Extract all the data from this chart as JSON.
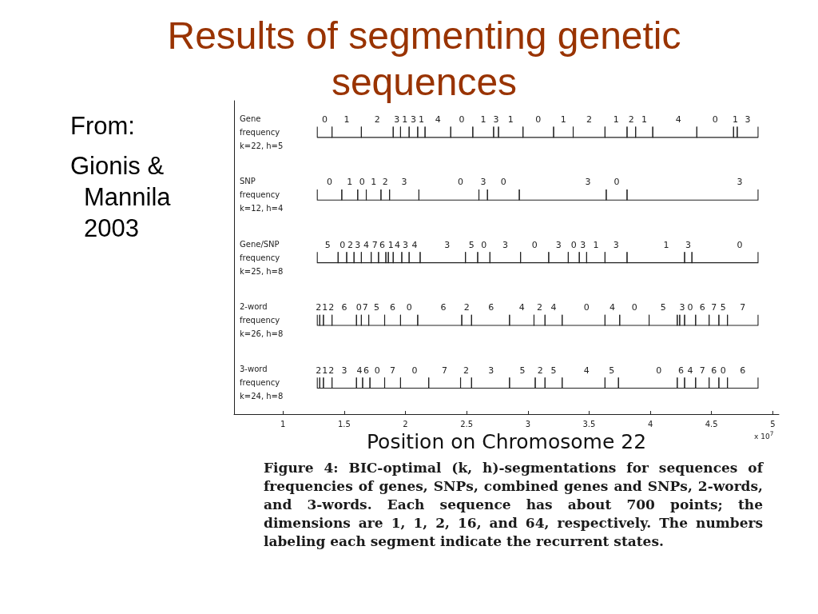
{
  "chart_data": {
    "type": "bar",
    "orientation": "horizontal",
    "title": "Results of segmenting genetic sequences",
    "xlabel": "Position on Chromosome 22",
    "categories": [
      "Gene\nfrequency\nk=22, h=5",
      "SNP\nfrequency\nk=12, h=4",
      "Gene/SNP\nfrequency\nk=25, h=8",
      "2-word\nfrequency\nk=26, h=8",
      "3-word\nfrequency\nk=24, h=8"
    ],
    "xlim": [
      0.6,
      5.05
    ],
    "xticks": [
      1,
      1.5,
      2,
      2.5,
      3,
      3.5,
      4,
      4.5,
      5
    ],
    "annotations": [
      "From:",
      "Gionis & Mannila 2003",
      "x 10$^{7}$",
      "Figure 4: BIC-optimal (k, h)-segmentations for sequences of frequencies of genes, SNPs, combined genes and SNPs, 2-words, and 3-words. Each sequence has about 700 points; the dimensions are 1, 1, 2, 16, and 64, respectively. The numbers labeling each segment indicate the recurrent states.",
      {
        "text": "0",
        "x": 1.4,
        "y": "Gene\nfrequency\nk=22, h=5"
      },
      {
        "text": "1",
        "x": 1.64,
        "y": "Gene\nfrequency\nk=22, h=5"
      },
      {
        "text": "2",
        "x": 1.9,
        "y": "Gene\nfrequency\nk=22, h=5"
      },
      {
        "text": "3",
        "x": 1.96,
        "y": "Gene\nfrequency\nk=22, h=5"
      },
      {
        "text": "1",
        "x": 2.03,
        "y": "Gene\nfrequency\nk=22, h=5"
      },
      {
        "text": "3",
        "x": 2.1,
        "y": "Gene\nfrequency\nk=22, h=5"
      },
      {
        "text": "1",
        "x": 2.16,
        "y": "Gene\nfrequency\nk=22, h=5"
      },
      {
        "text": "4",
        "x": 2.37,
        "y": "Gene\nfrequency\nk=22, h=5"
      },
      {
        "text": "0",
        "x": 2.55,
        "y": "Gene\nfrequency\nk=22, h=5"
      },
      {
        "text": "1",
        "x": 2.72,
        "y": "Gene\nfrequency\nk=22, h=5"
      },
      {
        "text": "3",
        "x": 2.76,
        "y": "Gene\nfrequency\nk=22, h=5"
      },
      {
        "text": "1",
        "x": 2.96,
        "y": "Gene\nfrequency\nk=22, h=5"
      },
      {
        "text": "0",
        "x": 3.21,
        "y": "Gene\nfrequency\nk=22, h=5"
      },
      {
        "text": "1",
        "x": 3.37,
        "y": "Gene\nfrequency\nk=22, h=5"
      },
      {
        "text": "2",
        "x": 3.63,
        "y": "Gene\nfrequency\nk=22, h=5"
      },
      {
        "text": "1",
        "x": 3.81,
        "y": "Gene\nfrequency\nk=22, h=5"
      },
      {
        "text": "2",
        "x": 3.88,
        "y": "Gene\nfrequency\nk=22, h=5"
      },
      {
        "text": "1",
        "x": 4.02,
        "y": "Gene\nfrequency\nk=22, h=5"
      },
      {
        "text": "4",
        "x": 4.38,
        "y": "Gene\nfrequency\nk=22, h=5"
      },
      {
        "text": "0",
        "x": 4.68,
        "y": "Gene\nfrequency\nk=22, h=5"
      },
      {
        "text": "1",
        "x": 4.71,
        "y": "Gene\nfrequency\nk=22, h=5"
      },
      {
        "text": "3",
        "x": 4.88,
        "y": "Gene\nfrequency\nk=22, h=5"
      },
      {
        "text": "0",
        "x": 1.48,
        "y": "SNP\nfrequency\nk=12, h=4"
      },
      {
        "text": "1",
        "x": 1.61,
        "y": "SNP\nfrequency\nk=12, h=4"
      },
      {
        "text": "0",
        "x": 1.68,
        "y": "SNP\nfrequency\nk=12, h=4"
      },
      {
        "text": "1",
        "x": 1.8,
        "y": "SNP\nfrequency\nk=12, h=4"
      },
      {
        "text": "2",
        "x": 1.87,
        "y": "SNP\nfrequency\nk=12, h=4"
      },
      {
        "text": "3",
        "x": 2.11,
        "y": "SNP\nfrequency\nk=12, h=4"
      },
      {
        "text": "0",
        "x": 2.6,
        "y": "SNP\nfrequency\nk=12, h=4"
      },
      {
        "text": "3",
        "x": 2.67,
        "y": "SNP\nfrequency\nk=12, h=4"
      },
      {
        "text": "0",
        "x": 2.93,
        "y": "SNP\nfrequency\nk=12, h=4"
      },
      {
        "text": "3",
        "x": 3.64,
        "y": "SNP\nfrequency\nk=12, h=4"
      },
      {
        "text": "0",
        "x": 3.81,
        "y": "SNP\nfrequency\nk=12, h=4"
      },
      {
        "text": "3",
        "x": 4.88,
        "y": "SNP\nfrequency\nk=12, h=4"
      },
      {
        "text": "5",
        "x": 1.45,
        "y": "Gene/SNP\nfrequency\nk=25, h=8"
      },
      {
        "text": "0",
        "x": 1.52,
        "y": "Gene/SNP\nfrequency\nk=25, h=8"
      },
      {
        "text": "2",
        "x": 1.58,
        "y": "Gene/SNP\nfrequency\nk=25, h=8"
      },
      {
        "text": "3",
        "x": 1.64,
        "y": "Gene/SNP\nfrequency\nk=25, h=8"
      },
      {
        "text": "4",
        "x": 1.72,
        "y": "Gene/SNP\nfrequency\nk=25, h=8"
      },
      {
        "text": "7",
        "x": 1.78,
        "y": "Gene/SNP\nfrequency\nk=25, h=8"
      },
      {
        "text": "6",
        "x": 1.84,
        "y": "Gene/SNP\nfrequency\nk=25, h=8"
      },
      {
        "text": "1",
        "x": 1.9,
        "y": "Gene/SNP\nfrequency\nk=25, h=8"
      },
      {
        "text": "4",
        "x": 1.97,
        "y": "Gene/SNP\nfrequency\nk=25, h=8"
      },
      {
        "text": "3",
        "x": 2.03,
        "y": "Gene/SNP\nfrequency\nk=25, h=8"
      },
      {
        "text": "4",
        "x": 2.12,
        "y": "Gene/SNP\nfrequency\nk=25, h=8"
      },
      {
        "text": "3",
        "x": 2.49,
        "y": "Gene/SNP\nfrequency\nk=25, h=8"
      },
      {
        "text": "5",
        "x": 2.59,
        "y": "Gene/SNP\nfrequency\nk=25, h=8"
      },
      {
        "text": "0",
        "x": 2.69,
        "y": "Gene/SNP\nfrequency\nk=25, h=8"
      },
      {
        "text": "3",
        "x": 2.94,
        "y": "Gene/SNP\nfrequency\nk=25, h=8"
      },
      {
        "text": "0",
        "x": 3.17,
        "y": "Gene/SNP\nfrequency\nk=25, h=8"
      },
      {
        "text": "3",
        "x": 3.33,
        "y": "Gene/SNP\nfrequency\nk=25, h=8"
      },
      {
        "text": "0",
        "x": 3.42,
        "y": "Gene/SNP\nfrequency\nk=25, h=8"
      },
      {
        "text": "3",
        "x": 3.48,
        "y": "Gene/SNP\nfrequency\nk=25, h=8"
      },
      {
        "text": "1",
        "x": 3.63,
        "y": "Gene/SNP\nfrequency\nk=25, h=8"
      },
      {
        "text": "3",
        "x": 3.81,
        "y": "Gene/SNP\nfrequency\nk=25, h=8"
      },
      {
        "text": "1",
        "x": 4.28,
        "y": "Gene/SNP\nfrequency\nk=25, h=8"
      },
      {
        "text": "3",
        "x": 4.34,
        "y": "Gene/SNP\nfrequency\nk=25, h=8"
      },
      {
        "text": "0",
        "x": 4.88,
        "y": "Gene/SNP\nfrequency\nk=25, h=8"
      },
      {
        "text": "2",
        "x": 1.3,
        "y": "2-word\nfrequency\nk=26, h=8"
      },
      {
        "text": "1",
        "x": 1.33,
        "y": "2-word\nfrequency\nk=26, h=8"
      },
      {
        "text": "2",
        "x": 1.4,
        "y": "2-word\nfrequency\nk=26, h=8"
      },
      {
        "text": "6",
        "x": 1.6,
        "y": "2-word\nfrequency\nk=26, h=8"
      },
      {
        "text": "0",
        "x": 1.64,
        "y": "2-word\nfrequency\nk=26, h=8"
      },
      {
        "text": "7",
        "x": 1.7,
        "y": "2-word\nfrequency\nk=26, h=8"
      },
      {
        "text": "5",
        "x": 1.83,
        "y": "2-word\nfrequency\nk=26, h=8"
      },
      {
        "text": "6",
        "x": 1.96,
        "y": "2-word\nfrequency\nk=26, h=8"
      },
      {
        "text": "0",
        "x": 2.1,
        "y": "2-word\nfrequency\nk=26, h=8"
      },
      {
        "text": "6",
        "x": 2.46,
        "y": "2-word\nfrequency\nk=26, h=8"
      },
      {
        "text": "2",
        "x": 2.54,
        "y": "2-word\nfrequency\nk=26, h=8"
      },
      {
        "text": "6",
        "x": 2.85,
        "y": "2-word\nfrequency\nk=26, h=8"
      },
      {
        "text": "4",
        "x": 3.05,
        "y": "2-word\nfrequency\nk=26, h=8"
      },
      {
        "text": "2",
        "x": 3.14,
        "y": "2-word\nfrequency\nk=26, h=8"
      },
      {
        "text": "4",
        "x": 3.28,
        "y": "2-word\nfrequency\nk=26, h=8"
      },
      {
        "text": "0",
        "x": 3.63,
        "y": "2-word\nfrequency\nk=26, h=8"
      },
      {
        "text": "4",
        "x": 3.75,
        "y": "2-word\nfrequency\nk=26, h=8"
      },
      {
        "text": "0",
        "x": 3.99,
        "y": "2-word\nfrequency\nk=26, h=8"
      },
      {
        "text": "5",
        "x": 4.22,
        "y": "2-word\nfrequency\nk=26, h=8"
      },
      {
        "text": "3",
        "x": 4.28,
        "y": "2-word\nfrequency\nk=26, h=8"
      },
      {
        "text": "0",
        "x": 4.37,
        "y": "2-word\nfrequency\nk=26, h=8"
      },
      {
        "text": "6",
        "x": 4.48,
        "y": "2-word\nfrequency\nk=26, h=8"
      },
      {
        "text": "7",
        "x": 4.56,
        "y": "2-word\nfrequency\nk=26, h=8"
      },
      {
        "text": "5",
        "x": 4.63,
        "y": "2-word\nfrequency\nk=26, h=8"
      },
      {
        "text": "7",
        "x": 4.88,
        "y": "2-word\nfrequency\nk=26, h=8"
      },
      {
        "text": "2",
        "x": 1.3,
        "y": "3-word\nfrequency\nk=24, h=8"
      },
      {
        "text": "1",
        "x": 1.33,
        "y": "3-word\nfrequency\nk=24, h=8"
      },
      {
        "text": "2",
        "x": 1.4,
        "y": "3-word\nfrequency\nk=24, h=8"
      },
      {
        "text": "3",
        "x": 1.6,
        "y": "3-word\nfrequency\nk=24, h=8"
      },
      {
        "text": "4",
        "x": 1.65,
        "y": "3-word\nfrequency\nk=24, h=8"
      },
      {
        "text": "6",
        "x": 1.71,
        "y": "3-word\nfrequency\nk=24, h=8"
      },
      {
        "text": "0",
        "x": 1.83,
        "y": "3-word\nfrequency\nk=24, h=8"
      },
      {
        "text": "7",
        "x": 1.96,
        "y": "3-word\nfrequency\nk=24, h=8"
      },
      {
        "text": "0",
        "x": 2.19,
        "y": "3-word\nfrequency\nk=24, h=8"
      },
      {
        "text": "7",
        "x": 2.45,
        "y": "3-word\nfrequency\nk=24, h=8"
      },
      {
        "text": "2",
        "x": 2.54,
        "y": "3-word\nfrequency\nk=24, h=8"
      },
      {
        "text": "3",
        "x": 2.85,
        "y": "3-word\nfrequency\nk=24, h=8"
      },
      {
        "text": "5",
        "x": 3.06,
        "y": "3-word\nfrequency\nk=24, h=8"
      },
      {
        "text": "2",
        "x": 3.14,
        "y": "3-word\nfrequency\nk=24, h=8"
      },
      {
        "text": "5",
        "x": 3.28,
        "y": "3-word\nfrequency\nk=24, h=8"
      },
      {
        "text": "4",
        "x": 3.63,
        "y": "3-word\nfrequency\nk=24, h=8"
      },
      {
        "text": "5",
        "x": 3.74,
        "y": "3-word\nfrequency\nk=24, h=8"
      },
      {
        "text": "0",
        "x": 4.22,
        "y": "3-word\nfrequency\nk=24, h=8"
      },
      {
        "text": "6",
        "x": 4.28,
        "y": "3-word\nfrequency\nk=24, h=8"
      },
      {
        "text": "4",
        "x": 4.37,
        "y": "3-word\nfrequency\nk=24, h=8"
      },
      {
        "text": "7",
        "x": 4.48,
        "y": "3-word\nfrequency\nk=24, h=8"
      },
      {
        "text": "6",
        "x": 4.56,
        "y": "3-word\nfrequency\nk=24, h=8"
      },
      {
        "text": "0",
        "x": 4.63,
        "y": "3-word\nfrequency\nk=24, h=8"
      },
      {
        "text": "6",
        "x": 4.88,
        "y": "3-word\nfrequency\nk=24, h=8"
      }
    ],
    "series": [
      {
        "color": "#222222",
        "values": [
          0.12,
          0.2,
          0.17,
          0.02,
          0.02
        ],
        "base": [
          1.28,
          1.28,
          1.28,
          1.28,
          1.28
        ]
      },
      {
        "color": "#222222",
        "values": [
          0.24,
          0.13,
          0.07,
          0.03,
          0.03
        ],
        "base": [
          1.4,
          1.48,
          1.45,
          1.3,
          1.3
        ]
      },
      {
        "color": "#222222",
        "values": [
          0.26,
          0.07,
          0.06,
          0.07,
          0.07
        ],
        "base": [
          1.64,
          1.61,
          1.52,
          1.33,
          1.33
        ]
      },
      {
        "color": "#222222",
        "values": [
          0.06,
          0.12,
          0.06,
          0.2,
          0.2
        ],
        "base": [
          1.9,
          1.68,
          1.58,
          1.4,
          1.4
        ]
      },
      {
        "color": "#222222",
        "values": [
          0.07,
          0.07,
          0.08,
          0.04,
          0.05
        ],
        "base": [
          1.96,
          1.8,
          1.64,
          1.6,
          1.6
        ]
      },
      {
        "color": "#222222",
        "values": [
          0.07,
          0.24,
          0.06,
          0.06,
          0.06
        ],
        "base": [
          2.03,
          1.87,
          1.72,
          1.64,
          1.65
        ]
      },
      {
        "color": "#222222",
        "values": [
          0.06,
          0.49,
          0.06,
          0.13,
          0.12
        ],
        "base": [
          2.1,
          2.11,
          1.78,
          1.7,
          1.71
        ]
      },
      {
        "color": "#222222",
        "values": [
          0.21,
          0.07,
          0.02,
          0.13,
          0.13
        ],
        "base": [
          2.16,
          2.6,
          1.84,
          1.83,
          1.83
        ]
      },
      {
        "color": "#222222",
        "values": [
          0.18,
          0.26,
          0.04,
          0.14,
          0.23
        ],
        "base": [
          2.37,
          2.67,
          1.86,
          1.96,
          1.96
        ]
      },
      {
        "color": "#222222",
        "values": [
          0.17,
          0.71,
          0.07,
          0.36,
          0.26
        ],
        "base": [
          2.55,
          2.93,
          1.9,
          2.1,
          2.19
        ]
      },
      {
        "color": "#222222",
        "values": [
          0.04,
          0.17,
          0.06,
          0.08,
          0.09
        ],
        "base": [
          2.72,
          3.64,
          1.97,
          2.46,
          2.45
        ]
      },
      {
        "color": "#222222",
        "values": [
          0.2,
          1.07,
          0.09,
          0.31,
          0.31
        ],
        "base": [
          2.76,
          3.81,
          2.03,
          2.54,
          2.54
        ]
      },
      {
        "color": "#222222",
        "values": [
          0.25,
          null,
          0.37,
          0.2,
          0.21
        ],
        "base": [
          2.96,
          null,
          2.12,
          2.85,
          2.85
        ]
      },
      {
        "color": "#222222",
        "values": [
          0.16,
          null,
          0.1,
          0.09,
          0.08
        ],
        "base": [
          3.21,
          null,
          2.49,
          3.05,
          3.06
        ]
      },
      {
        "color": "#222222",
        "values": [
          0.26,
          null,
          0.1,
          0.14,
          0.14
        ],
        "base": [
          3.37,
          null,
          2.59,
          3.14,
          3.14
        ]
      },
      {
        "color": "#222222",
        "values": [
          0.18,
          null,
          0.25,
          0.35,
          0.35
        ],
        "base": [
          3.63,
          null,
          2.69,
          3.28,
          3.28
        ]
      },
      {
        "color": "#222222",
        "values": [
          0.07,
          null,
          0.23,
          0.12,
          0.11
        ],
        "base": [
          3.81,
          null,
          2.94,
          3.63,
          3.63
        ]
      },
      {
        "color": "#222222",
        "values": [
          0.14,
          null,
          0.16,
          0.24,
          0.48
        ],
        "base": [
          3.88,
          null,
          3.17,
          3.75,
          3.74
        ]
      },
      {
        "color": "#222222",
        "values": [
          0.36,
          null,
          0.09,
          0.23,
          0.06
        ],
        "base": [
          4.02,
          null,
          3.33,
          3.99,
          4.22
        ]
      },
      {
        "color": "#222222",
        "values": [
          0.3,
          null,
          0.06,
          0.02,
          0.09
        ],
        "base": [
          4.38,
          null,
          3.42,
          4.22,
          4.28
        ]
      },
      {
        "color": "#222222",
        "values": [
          0.03,
          null,
          0.15,
          0.04,
          0.11
        ],
        "base": [
          4.68,
          null,
          3.48,
          4.24,
          4.37
        ]
      },
      {
        "color": "#222222",
        "values": [
          0.17,
          null,
          0.18,
          0.09,
          0.08
        ],
        "base": [
          4.71,
          null,
          3.63,
          4.28,
          4.48
        ]
      },
      {
        "color": "#222222",
        "values": [
          null,
          null,
          0.47,
          0.11,
          0.07
        ],
        "base": [
          null,
          null,
          3.81,
          4.37,
          4.56
        ]
      },
      {
        "color": "#222222",
        "values": [
          null,
          null,
          0.06,
          0.08,
          0.25
        ],
        "base": [
          null,
          null,
          4.28,
          4.48,
          4.63
        ]
      },
      {
        "color": "#222222",
        "values": [
          null,
          null,
          0.54,
          0.07,
          null
        ],
        "base": [
          null,
          null,
          4.34,
          4.56,
          null
        ]
      },
      {
        "color": "#222222",
        "values": [
          null,
          null,
          null,
          0.25,
          null
        ],
        "base": [
          null,
          null,
          null,
          4.63,
          null
        ]
      }
    ]
  }
}
